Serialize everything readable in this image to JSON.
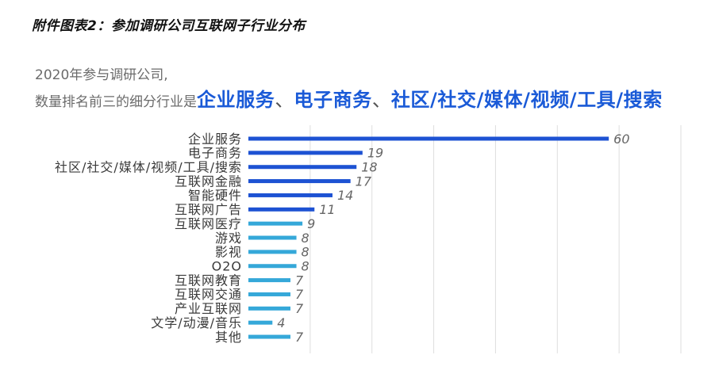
{
  "colors": {
    "highlight_text": "#1a5ad7"
  },
  "chart_data": {
    "type": "bar",
    "orientation": "horizontal",
    "title": "附件图表2：参加调研公司互联网子行业分布",
    "subtitle": {
      "line1": "2020年参与调研公司,",
      "line2_prefix": "数量排名前三的细分行业是",
      "line2_segments": [
        {
          "text": "企业服务",
          "highlight": true
        },
        {
          "text": "、",
          "highlight": false
        },
        {
          "text": "电子商务",
          "highlight": true
        },
        {
          "text": "、",
          "highlight": false
        },
        {
          "text": "社区/社交/媒体/视频/工具/搜索",
          "highlight": true
        }
      ]
    },
    "categories": [
      "企业服务",
      "电子商务",
      "社区/社交/媒体/视频/工具/搜索",
      "互联网金融",
      "智能硬件",
      "互联网广告",
      "互联网医疗",
      "游戏",
      "影视",
      "O2O",
      "互联网教育",
      "互联网交通",
      "产业互联网",
      "文学/动漫/音乐",
      "其他"
    ],
    "values": [
      60,
      19,
      18,
      17,
      14,
      11,
      9,
      8,
      8,
      8,
      7,
      7,
      7,
      4,
      7
    ],
    "bar_colors": [
      "#1d52d3",
      "#1d52d3",
      "#1d52d3",
      "#1d52d3",
      "#1d52d3",
      "#1d52d3",
      "#35a8d9",
      "#35a8d9",
      "#35a8d9",
      "#35a8d9",
      "#35a8d9",
      "#35a8d9",
      "#35a8d9",
      "#35a8d9",
      "#35a8d9"
    ],
    "xlim": [
      0,
      72
    ],
    "grid": true
  }
}
